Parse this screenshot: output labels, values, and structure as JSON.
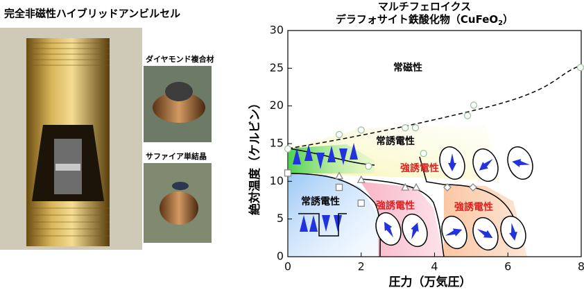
{
  "photo_panel": {
    "title": "完全非磁性ハイブリッドアンビルセル",
    "labels": [
      "ダイヤモンド複合材",
      "サファイア単結晶"
    ]
  },
  "chart_data": {
    "type": "scatter",
    "title": "マルチフェロイクス",
    "subtitle": {
      "text": "デラフォサイト鉄酸化物（CuFeO",
      "sub": "2",
      "tail": "）"
    },
    "xlabel": "圧力（万気圧）",
    "ylabel": "絶対温度（ケルビン）",
    "xlim": [
      0,
      8
    ],
    "ylim": [
      0,
      30
    ],
    "xticks": [
      0,
      2,
      4,
      6,
      8
    ],
    "yticks": [
      0,
      5,
      10,
      15,
      20,
      25,
      30
    ],
    "annotations": [
      "常磁性",
      "常誘電性",
      "強誘電性",
      "常誘電性",
      "強誘電性",
      "強誘電性"
    ],
    "series": [
      {
        "marker": "circle",
        "color": "#9fc49f",
        "x": [
          0,
          1.4,
          2.0,
          3.2,
          3.48,
          4.9,
          5.07,
          7.98,
          2.2,
          3.7
        ],
        "y": [
          14.3,
          16.2,
          16.8,
          17.1,
          17.1,
          18.7,
          20.1,
          25.1,
          12,
          13.7
        ]
      },
      {
        "marker": "triangle",
        "color": "#888888",
        "x": [
          1.4,
          2.0,
          3.2,
          3.5
        ],
        "y": [
          10.7,
          10.2,
          9.2,
          9.2
        ]
      },
      {
        "marker": "square",
        "color": "#888888",
        "x": [
          0,
          1.4,
          2.0
        ],
        "y": [
          11.1,
          9.2,
          7.1
        ]
      },
      {
        "marker": "diamond",
        "color": "#888888",
        "x": [
          4.35,
          5.05
        ],
        "y": [
          9.2,
          9.2
        ]
      }
    ]
  }
}
